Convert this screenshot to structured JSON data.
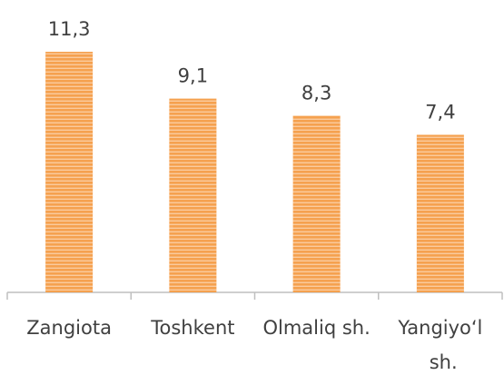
{
  "chart_data": {
    "type": "bar",
    "categories": [
      "Zangiota",
      "Toshkent",
      "Olmaliq sh.",
      "Yangiyo‘l sh."
    ],
    "values": [
      11.3,
      9.1,
      8.3,
      7.4
    ],
    "value_labels": [
      "11,3",
      "9,1",
      "8,3",
      "7,4"
    ],
    "color": "#f5a14f",
    "ylim": [
      0,
      12
    ]
  }
}
